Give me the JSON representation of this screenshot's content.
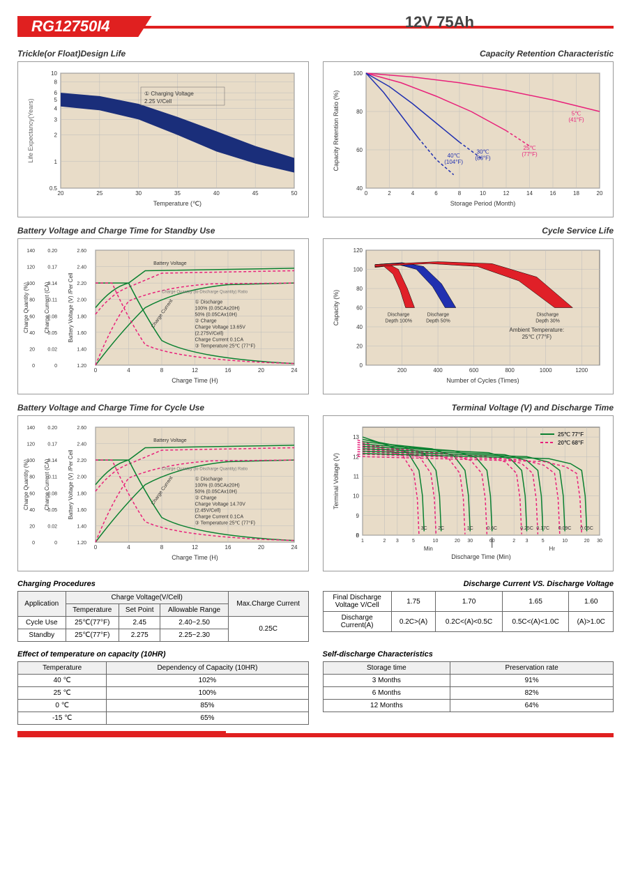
{
  "header": {
    "model": "RG12750I4",
    "spec": "12V  75Ah"
  },
  "charts": {
    "trickle": {
      "title": "Trickle(or Float)Design Life",
      "xlabel": "Temperature (℃)",
      "ylabel": "Life Expectancy(Years)",
      "xticks": [
        20,
        25,
        30,
        35,
        40,
        45,
        50
      ],
      "yticks": [
        "0.5",
        "1",
        "2",
        "3",
        "4",
        "5",
        "6",
        "8",
        "10"
      ],
      "annotation": "① Charging Voltage\n2.25 V/Cell",
      "band_color": "#1a2e7a",
      "bg": "#e8dcc8",
      "upper": [
        [
          20,
          6
        ],
        [
          25,
          5.5
        ],
        [
          30,
          4.5
        ],
        [
          35,
          3.2
        ],
        [
          40,
          2.2
        ],
        [
          45,
          1.5
        ],
        [
          50,
          1.1
        ]
      ],
      "lower": [
        [
          20,
          4.2
        ],
        [
          25,
          3.8
        ],
        [
          30,
          3.0
        ],
        [
          35,
          2.0
        ],
        [
          40,
          1.3
        ],
        [
          45,
          0.95
        ],
        [
          50,
          0.75
        ]
      ]
    },
    "retention": {
      "title": "Capacity Retention Characteristic",
      "xlabel": "Storage Period (Month)",
      "ylabel": "Capacity Retention Ratio (%)",
      "xticks": [
        0,
        2,
        4,
        6,
        8,
        10,
        12,
        14,
        16,
        18,
        20
      ],
      "yticks": [
        40,
        60,
        80,
        100
      ],
      "bg": "#e8dcc8",
      "curves": [
        {
          "label": "5℃\n(41°F)",
          "color": "#e8207a",
          "x": 18,
          "y": 78,
          "pts": [
            [
              0,
              100
            ],
            [
              4,
              98
            ],
            [
              8,
              95
            ],
            [
              12,
              91
            ],
            [
              16,
              86
            ],
            [
              20,
              80
            ]
          ]
        },
        {
          "label": "25℃\n(77°F)",
          "color": "#e8207a",
          "x": 14,
          "y": 60,
          "pts": [
            [
              0,
              100
            ],
            [
              3,
              95
            ],
            [
              6,
              88
            ],
            [
              9,
              80
            ],
            [
              12,
              70
            ],
            [
              14,
              62
            ]
          ],
          "dash_after": 12
        },
        {
          "label": "30℃\n(86°F)",
          "color": "#2030b0",
          "x": 10,
          "y": 58,
          "pts": [
            [
              0,
              100
            ],
            [
              2,
              93
            ],
            [
              4,
              84
            ],
            [
              6,
              74
            ],
            [
              8,
              64
            ],
            [
              10,
              55
            ]
          ],
          "dash_after": 8
        },
        {
          "label": "40℃\n(104°F)",
          "color": "#2030b0",
          "x": 7.5,
          "y": 56,
          "pts": [
            [
              0,
              100
            ],
            [
              1.5,
              90
            ],
            [
              3,
              78
            ],
            [
              4.5,
              66
            ],
            [
              6,
              55
            ],
            [
              7.5,
              47
            ]
          ],
          "dash_after": 4.5
        }
      ]
    },
    "standby": {
      "title": "Battery Voltage and Charge Time for Standby Use",
      "xlabel": "Charge Time (H)",
      "y1": "Charge Quantity (%)",
      "y2": "Charge Current (CA)",
      "y3": "Battery Voltage (V) /Per Cell",
      "xticks": [
        0,
        4,
        8,
        12,
        16,
        20,
        24
      ],
      "y1ticks": [
        0,
        20,
        40,
        60,
        80,
        100,
        120,
        140
      ],
      "y2ticks": [
        "0",
        "0.02",
        "0.05",
        "0.08",
        "0.11",
        "0.14",
        "0.17",
        "0.20"
      ],
      "y3ticks": [
        "1.20",
        "1.40",
        "1.60",
        "1.80",
        "2.00",
        "2.20",
        "2.40",
        "2.60"
      ],
      "bg": "#e8dcc8",
      "green": "#0a8030",
      "pink": "#e8207a",
      "legend": [
        "① Discharge",
        "100% (0.05CAx20H)",
        "50% (0.05CAx10H)",
        "② Charge",
        "Charge Voltage 13.65V",
        "(2.275V/Cell)",
        "Charge Current 0.1CA",
        "③ Temperature 25℃ (77°F)"
      ],
      "labels": [
        "Battery Voltage",
        "Charge Quantity (to-Discharge Quantity) Ratio",
        "Charge Current"
      ]
    },
    "cycle_life": {
      "title": "Cycle Service Life",
      "xlabel": "Number of Cycles (Times)",
      "ylabel": "Capacity (%)",
      "xticks": [
        200,
        400,
        600,
        800,
        1000,
        1200
      ],
      "yticks": [
        0,
        20,
        40,
        60,
        80,
        100,
        120
      ],
      "bg": "#e8dcc8",
      "ambient": "Ambient Temperature:\n25℃ (77°F)",
      "bands": [
        {
          "label": "Discharge\nDepth 100%",
          "color": "#e02028",
          "upper": [
            [
              50,
              105
            ],
            [
              120,
              106
            ],
            [
              180,
              100
            ],
            [
              230,
              80
            ],
            [
              270,
              60
            ]
          ],
          "lower": [
            [
              50,
              102
            ],
            [
              100,
              103
            ],
            [
              150,
              95
            ],
            [
              190,
              78
            ],
            [
              220,
              60
            ]
          ]
        },
        {
          "label": "Discharge\nDepth 50%",
          "color": "#2030b0",
          "upper": [
            [
              50,
              105
            ],
            [
              200,
              107
            ],
            [
              320,
              103
            ],
            [
              420,
              85
            ],
            [
              500,
              60
            ]
          ],
          "lower": [
            [
              50,
              103
            ],
            [
              180,
              105
            ],
            [
              280,
              100
            ],
            [
              370,
              82
            ],
            [
              440,
              60
            ]
          ]
        },
        {
          "label": "Discharge\nDepth 30%",
          "color": "#e02028",
          "upper": [
            [
              50,
              105
            ],
            [
              400,
              108
            ],
            [
              700,
              106
            ],
            [
              950,
              92
            ],
            [
              1150,
              60
            ]
          ],
          "lower": [
            [
              50,
              103
            ],
            [
              350,
              106
            ],
            [
              620,
              103
            ],
            [
              850,
              88
            ],
            [
              1050,
              60
            ]
          ]
        }
      ]
    },
    "cycle_charge": {
      "title": "Battery Voltage and Charge Time for Cycle Use",
      "xlabel": "Charge Time (H)",
      "y1": "Charge Quantity (%)",
      "y2": "Charge Current (CA)",
      "y3": "Battery Voltage (V) /Per Cell",
      "xticks": [
        0,
        4,
        8,
        12,
        16,
        20,
        24
      ],
      "y1ticks": [
        0,
        20,
        40,
        60,
        80,
        100,
        120,
        140
      ],
      "y2ticks": [
        "0",
        "0.02",
        "0.05",
        "0.08",
        "0.11",
        "0.14",
        "0.17",
        "0.20"
      ],
      "y3ticks": [
        "1.20",
        "1.40",
        "1.60",
        "1.80",
        "2.00",
        "2.20",
        "2.40",
        "2.60"
      ],
      "bg": "#e8dcc8",
      "green": "#0a8030",
      "pink": "#e8207a",
      "legend": [
        "① Discharge",
        "100% (0.05CAx20H)",
        "50% (0.05CAx10H)",
        "② Charge",
        "Charge Voltage 14.70V",
        "(2.45V/Cell)",
        "Charge Current 0.1CA",
        "③ Temperature 25℃ (77°F)"
      ],
      "labels": [
        "Battery Voltage",
        "Charge Quantity (to-Discharge Quantity) Ratio",
        "Charge Current"
      ]
    },
    "terminal": {
      "title": "Terminal Voltage (V) and Discharge Time",
      "xlabel": "Discharge Time (Min)",
      "ylabel": "Terminal Voltage (V)",
      "yticks": [
        0,
        8,
        9,
        10,
        11,
        12,
        13
      ],
      "bg": "#e8dcc8",
      "legend": [
        {
          "c": "#0a8030",
          "t": "25℃ 77°F"
        },
        {
          "c": "#e8207a",
          "t": "20℃ 68°F"
        }
      ],
      "rates": [
        "3C",
        "2C",
        "1C",
        "0.6C",
        "0.25C",
        "0.17C",
        "0.09C",
        "0.05C"
      ],
      "xscale": [
        "1",
        "2",
        "3",
        "5",
        "10",
        "20",
        "30",
        "60",
        "2",
        "3",
        "5",
        "10",
        "20",
        "30"
      ],
      "min_hr": [
        "Min",
        "Hr"
      ]
    }
  },
  "tables": {
    "charging": {
      "title": "Charging Procedures",
      "headers": {
        "app": "Application",
        "cv": "Charge Voltage(V/Cell)",
        "temp": "Temperature",
        "sp": "Set Point",
        "ar": "Allowable Range",
        "max": "Max.Charge Current"
      },
      "rows": [
        {
          "app": "Cycle Use",
          "temp": "25℃(77°F)",
          "sp": "2.45",
          "ar": "2.40~2.50"
        },
        {
          "app": "Standby",
          "temp": "25℃(77°F)",
          "sp": "2.275",
          "ar": "2.25~2.30"
        }
      ],
      "max": "0.25C"
    },
    "discharge": {
      "title": "Discharge Current VS. Discharge Voltage",
      "h1": "Final Discharge\nVoltage V/Cell",
      "h2": "Discharge\nCurrent(A)",
      "volts": [
        "1.75",
        "1.70",
        "1.65",
        "1.60"
      ],
      "ranges": [
        "0.2C>(A)",
        "0.2C<(A)<0.5C",
        "0.5C<(A)<1.0C",
        "(A)>1.0C"
      ]
    },
    "temp_effect": {
      "title": "Effect of temperature on capacity (10HR)",
      "h1": "Temperature",
      "h2": "Dependency of Capacity (10HR)",
      "rows": [
        [
          "40 ℃",
          "102%"
        ],
        [
          "25 ℃",
          "100%"
        ],
        [
          "0 ℃",
          "85%"
        ],
        [
          "-15 ℃",
          "65%"
        ]
      ]
    },
    "self_discharge": {
      "title": "Self-discharge Characteristics",
      "h1": "Storage time",
      "h2": "Preservation rate",
      "rows": [
        [
          "3 Months",
          "91%"
        ],
        [
          "6 Months",
          "82%"
        ],
        [
          "12 Months",
          "64%"
        ]
      ]
    }
  }
}
